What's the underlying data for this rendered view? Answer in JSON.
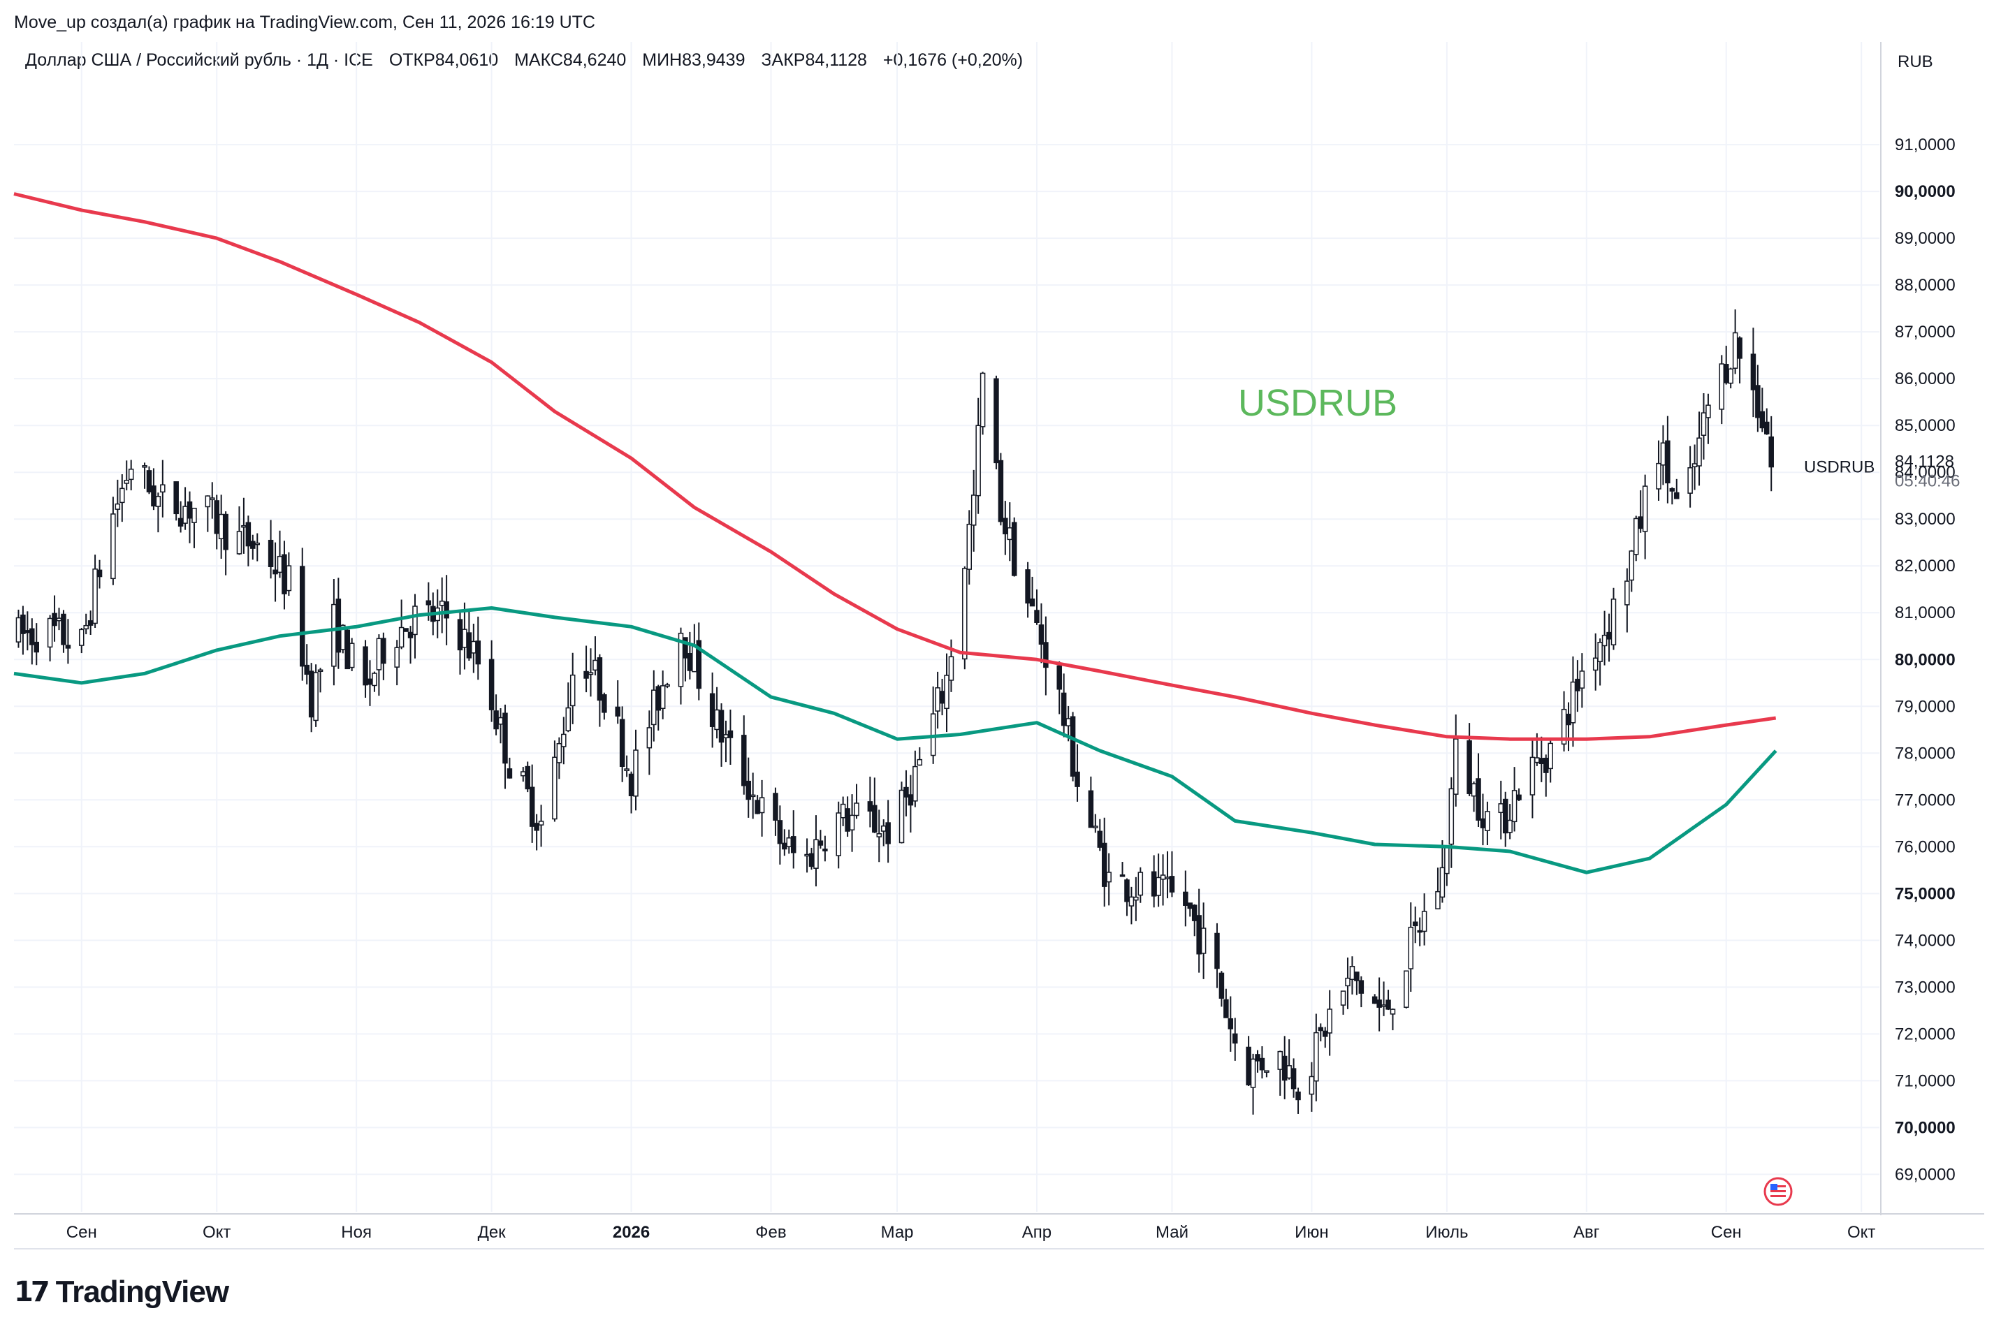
{
  "header": {
    "byline": "Move_up создал(а) график на TradingView.com, Сен 11, 2026 16:19 UTC",
    "instrument": "Доллар США / Российский рубль · 1Д · ICE",
    "ohlc": {
      "open": "ОТКР84,0610",
      "high": "МАКС84,6240",
      "low": "МИН83,9439",
      "close": "ЗАКР84,1128",
      "change": "+0,1676 (+0,20%)"
    }
  },
  "footer": {
    "brand": "TradingView",
    "logo_mark": "17"
  },
  "chart_data": {
    "type": "candlestick",
    "title": "",
    "watermark": "USDRUB",
    "currency": "RUB",
    "ylim": [
      68.2,
      92.3
    ],
    "y_ticks": [
      "91,0000",
      "90,0000",
      "89,0000",
      "88,0000",
      "87,0000",
      "86,0000",
      "85,0000",
      "84,0000",
      "83,0000",
      "82,0000",
      "81,0000",
      "80,0000",
      "79,0000",
      "78,0000",
      "77,0000",
      "76,0000",
      "75,0000",
      "74,0000",
      "73,0000",
      "72,0000",
      "71,0000",
      "70,0000",
      "69,0000"
    ],
    "y_tick_values": [
      91,
      90,
      89,
      88,
      87,
      86,
      85,
      84,
      83,
      82,
      81,
      80,
      79,
      78,
      77,
      76,
      75,
      74,
      73,
      72,
      71,
      70,
      69
    ],
    "x_ticks": [
      {
        "label": "Сен",
        "date": "2025-09-01",
        "bold": false
      },
      {
        "label": "Окт",
        "date": "2025-10-01",
        "bold": false
      },
      {
        "label": "Ноя",
        "date": "2025-11-01",
        "bold": false
      },
      {
        "label": "Дек",
        "date": "2025-12-01",
        "bold": false
      },
      {
        "label": "2026",
        "date": "2026-01-01",
        "bold": true
      },
      {
        "label": "Фев",
        "date": "2026-02-01",
        "bold": false
      },
      {
        "label": "Мар",
        "date": "2026-03-01",
        "bold": false
      },
      {
        "label": "Апр",
        "date": "2026-04-01",
        "bold": false
      },
      {
        "label": "Май",
        "date": "2026-05-01",
        "bold": false
      },
      {
        "label": "Июн",
        "date": "2026-06-01",
        "bold": false
      },
      {
        "label": "Июль",
        "date": "2026-07-01",
        "bold": false
      },
      {
        "label": "Авг",
        "date": "2026-08-01",
        "bold": false
      },
      {
        "label": "Сен",
        "date": "2026-09-01",
        "bold": false
      },
      {
        "label": "Окт",
        "date": "2026-10-01",
        "bold": false
      }
    ],
    "x_range": [
      "2025-08-17",
      "2026-10-05"
    ],
    "last_price": {
      "label": "84,1128",
      "value": 84.1128,
      "name": "USDRUB",
      "countdown": "05:40:46"
    },
    "colors": {
      "candle": "#131722",
      "ma_slow": "#e8394d",
      "ma_fast": "#089981",
      "watermark": "#5cb85c",
      "grid": "#f0f3fa",
      "axis_text": "#131722"
    },
    "series": [
      {
        "type": "line",
        "color": "#e8394d",
        "points": [
          [
            "2025-08-17",
            89.95
          ],
          [
            "2025-09-01",
            89.6
          ],
          [
            "2025-09-15",
            89.35
          ],
          [
            "2025-10-01",
            89.0
          ],
          [
            "2025-10-15",
            88.5
          ],
          [
            "2025-11-01",
            87.8
          ],
          [
            "2025-11-15",
            87.2
          ],
          [
            "2025-12-01",
            86.35
          ],
          [
            "2025-12-15",
            85.3
          ],
          [
            "2026-01-01",
            84.3
          ],
          [
            "2026-01-15",
            83.25
          ],
          [
            "2026-02-01",
            82.3
          ],
          [
            "2026-02-15",
            81.4
          ],
          [
            "2026-03-01",
            80.65
          ],
          [
            "2026-03-15",
            80.15
          ],
          [
            "2026-04-01",
            80.0
          ],
          [
            "2026-04-15",
            79.75
          ],
          [
            "2026-05-01",
            79.45
          ],
          [
            "2026-05-15",
            79.2
          ],
          [
            "2026-06-01",
            78.85
          ],
          [
            "2026-06-15",
            78.6
          ],
          [
            "2026-07-01",
            78.35
          ],
          [
            "2026-07-15",
            78.3
          ],
          [
            "2026-08-01",
            78.3
          ],
          [
            "2026-08-15",
            78.35
          ],
          [
            "2026-09-01",
            78.6
          ],
          [
            "2026-09-12",
            78.75
          ]
        ]
      },
      {
        "type": "line",
        "color": "#089981",
        "points": [
          [
            "2025-08-17",
            79.7
          ],
          [
            "2025-09-01",
            79.5
          ],
          [
            "2025-09-15",
            79.7
          ],
          [
            "2025-10-01",
            80.2
          ],
          [
            "2025-10-15",
            80.5
          ],
          [
            "2025-11-01",
            80.7
          ],
          [
            "2025-11-15",
            80.95
          ],
          [
            "2025-12-01",
            81.1
          ],
          [
            "2025-12-15",
            80.9
          ],
          [
            "2026-01-01",
            80.7
          ],
          [
            "2026-01-15",
            80.3
          ],
          [
            "2026-02-01",
            79.2
          ],
          [
            "2026-02-15",
            78.85
          ],
          [
            "2026-03-01",
            78.3
          ],
          [
            "2026-03-15",
            78.4
          ],
          [
            "2026-04-01",
            78.65
          ],
          [
            "2026-04-15",
            78.05
          ],
          [
            "2026-05-01",
            77.5
          ],
          [
            "2026-05-15",
            76.55
          ],
          [
            "2026-06-01",
            76.3
          ],
          [
            "2026-06-15",
            76.05
          ],
          [
            "2026-07-01",
            76.0
          ],
          [
            "2026-07-15",
            75.9
          ],
          [
            "2026-08-01",
            75.45
          ],
          [
            "2026-08-15",
            75.75
          ],
          [
            "2026-09-01",
            76.9
          ],
          [
            "2026-09-12",
            78.05
          ]
        ]
      }
    ],
    "candles_anchor_path": [
      [
        "2025-08-17",
        80.5
      ],
      [
        "2025-08-25",
        80.6
      ],
      [
        "2025-09-01",
        80.3
      ],
      [
        "2025-09-07",
        82.8
      ],
      [
        "2025-09-12",
        84.2
      ],
      [
        "2025-09-18",
        83.4
      ],
      [
        "2025-09-28",
        83.2
      ],
      [
        "2025-10-05",
        82.6
      ],
      [
        "2025-10-11",
        82.4
      ],
      [
        "2025-10-17",
        81.6
      ],
      [
        "2025-10-22",
        79.2
      ],
      [
        "2025-10-27",
        80.8
      ],
      [
        "2025-11-03",
        79.3
      ],
      [
        "2025-11-08",
        80.5
      ],
      [
        "2025-11-14",
        80.9
      ],
      [
        "2025-11-22",
        80.9
      ],
      [
        "2025-11-29",
        79.8
      ],
      [
        "2025-12-05",
        77.8
      ],
      [
        "2025-12-12",
        76.5
      ],
      [
        "2025-12-16",
        78.1
      ],
      [
        "2025-12-20",
        80.3
      ],
      [
        "2025-12-27",
        79.1
      ],
      [
        "2026-01-01",
        77.5
      ],
      [
        "2026-01-08",
        79.5
      ],
      [
        "2026-01-12",
        80.7
      ],
      [
        "2026-01-20",
        78.6
      ],
      [
        "2026-01-26",
        77.5
      ],
      [
        "2026-02-01",
        76.4
      ],
      [
        "2026-02-08",
        75.6
      ],
      [
        "2026-02-15",
        76.6
      ],
      [
        "2026-02-22",
        76.6
      ],
      [
        "2026-02-28",
        76.3
      ],
      [
        "2026-03-06",
        77.8
      ],
      [
        "2026-03-12",
        79.6
      ],
      [
        "2026-03-18",
        83.4
      ],
      [
        "2026-03-20",
        86.0
      ],
      [
        "2026-03-24",
        83.2
      ],
      [
        "2026-03-29",
        81.5
      ],
      [
        "2026-04-05",
        79.6
      ],
      [
        "2026-04-11",
        77.0
      ],
      [
        "2026-04-17",
        75.3
      ],
      [
        "2026-04-25",
        75.1
      ],
      [
        "2026-05-04",
        74.8
      ],
      [
        "2026-05-10",
        73.5
      ],
      [
        "2026-05-17",
        71.2
      ],
      [
        "2026-05-24",
        71.6
      ],
      [
        "2026-05-30",
        70.9
      ],
      [
        "2026-06-05",
        72.4
      ],
      [
        "2026-06-10",
        73.2
      ],
      [
        "2026-06-17",
        72.4
      ],
      [
        "2026-06-24",
        74.1
      ],
      [
        "2026-06-30",
        75.4
      ],
      [
        "2026-07-03",
        78.0
      ],
      [
        "2026-07-08",
        77.0
      ],
      [
        "2026-07-12",
        76.3
      ],
      [
        "2026-07-18",
        77.5
      ],
      [
        "2026-07-25",
        78.2
      ],
      [
        "2026-08-01",
        80.0
      ],
      [
        "2026-08-06",
        80.8
      ],
      [
        "2026-08-11",
        82.2
      ],
      [
        "2026-08-17",
        84.6
      ],
      [
        "2026-08-22",
        82.9
      ],
      [
        "2026-08-28",
        85.4
      ],
      [
        "2026-09-03",
        86.8
      ],
      [
        "2026-09-06",
        86.0
      ],
      [
        "2026-09-10",
        84.9
      ],
      [
        "2026-09-11",
        84.11
      ]
    ]
  }
}
